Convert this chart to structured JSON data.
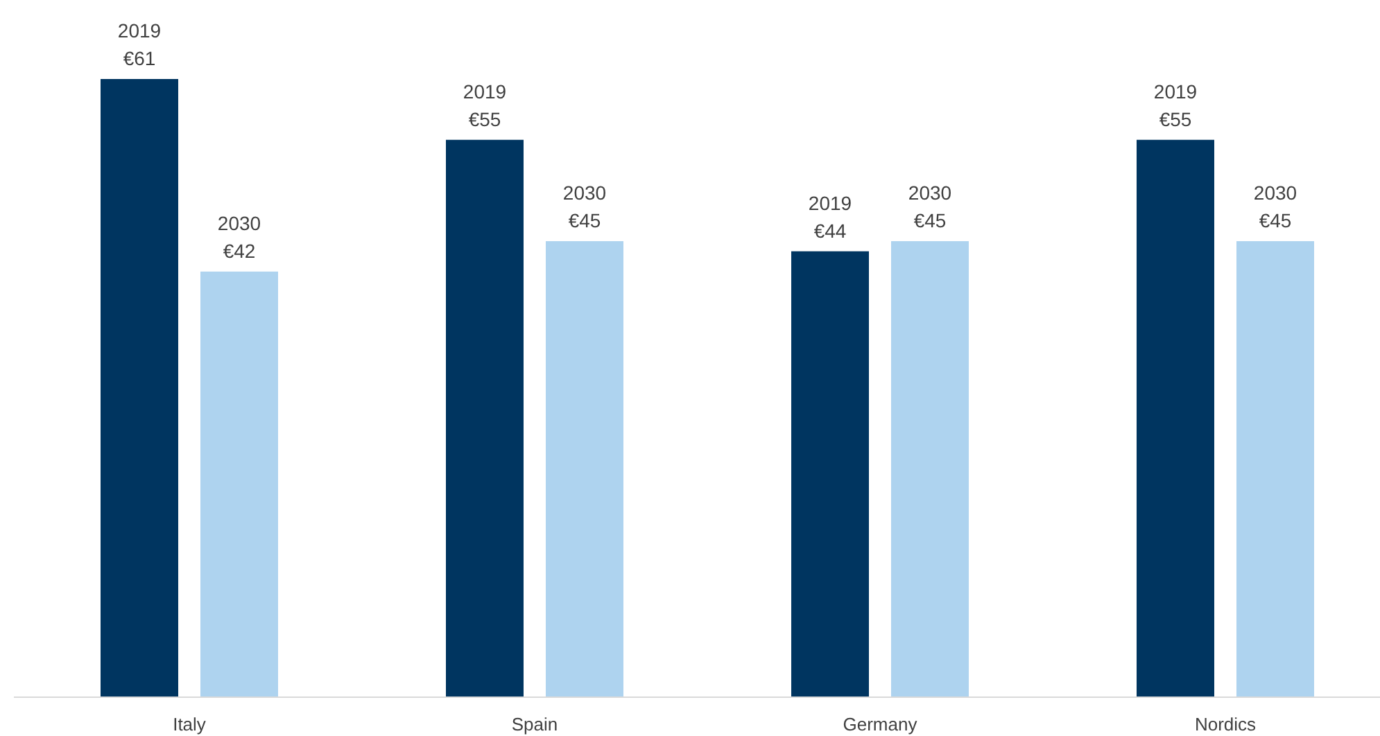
{
  "chart_data": {
    "type": "bar",
    "categories": [
      "Italy",
      "Spain",
      "Germany",
      "Nordics"
    ],
    "series": [
      {
        "name": "2019",
        "color": "#003560",
        "values": [
          61,
          55,
          44,
          55
        ],
        "value_labels": [
          "€61",
          "€55",
          "€44",
          "€55"
        ]
      },
      {
        "name": "2030",
        "color": "#aed3ef",
        "values": [
          42,
          45,
          45,
          45
        ],
        "value_labels": [
          "€42",
          "€45",
          "€45",
          "€45"
        ]
      }
    ]
  }
}
